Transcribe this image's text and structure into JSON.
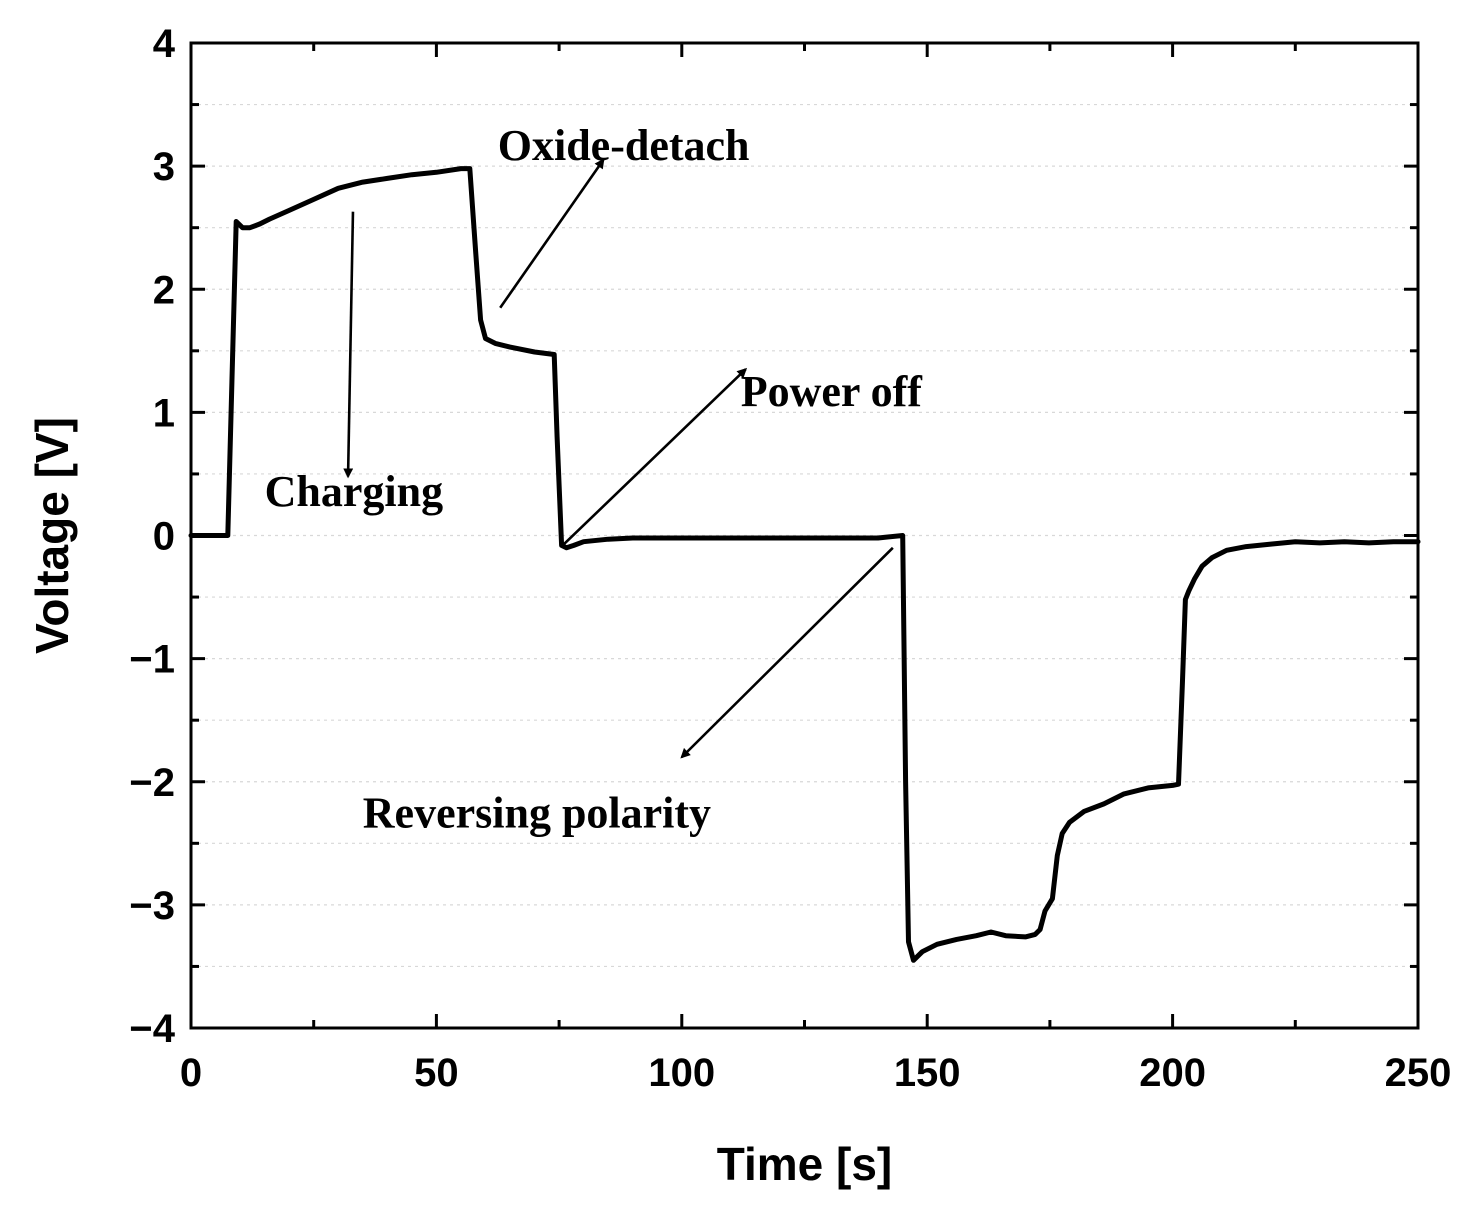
{
  "chart_data": {
    "type": "line",
    "title": "",
    "xlabel": "Time [s]",
    "ylabel": "Voltage [V]",
    "xlim": [
      0,
      250
    ],
    "ylim": [
      -4,
      4
    ],
    "grid": true,
    "x_major_ticks": [
      0,
      50,
      100,
      150,
      200,
      250
    ],
    "x_tick_labels": [
      "0",
      "50",
      "100",
      "150",
      "200",
      "250"
    ],
    "y_major_ticks": [
      4,
      3,
      2,
      1,
      0,
      -1,
      -2,
      -3,
      -4
    ],
    "y_tick_labels": [
      "4",
      "3",
      "2",
      "1",
      "0",
      "−1",
      "−2",
      "−3",
      "−4"
    ],
    "series": [
      {
        "name": "Voltage",
        "color": "#000000",
        "x": [
          0,
          7.5,
          9.2,
          10.5,
          12,
          14,
          16,
          20,
          25,
          30,
          35,
          40,
          45,
          50,
          55,
          56.8,
          58,
          59,
          60,
          62,
          65,
          70,
          74,
          74.6,
          75.5,
          76.5,
          78,
          80,
          85,
          90,
          100,
          120,
          140,
          145,
          145.6,
          146.2,
          147.2,
          149,
          152,
          156,
          160,
          163,
          166,
          170,
          172,
          173,
          174,
          175.5,
          176.5,
          177.5,
          179,
          182,
          186,
          190,
          195,
          200,
          201.2,
          202,
          202.6,
          203.3,
          204.5,
          206,
          208,
          211,
          215,
          220,
          225,
          230,
          235,
          240,
          245,
          250
        ],
        "y": [
          0,
          0,
          2.55,
          2.5,
          2.5,
          2.53,
          2.57,
          2.64,
          2.73,
          2.82,
          2.87,
          2.9,
          2.93,
          2.95,
          2.98,
          2.98,
          2.3,
          1.75,
          1.6,
          1.56,
          1.53,
          1.49,
          1.47,
          0.8,
          -0.08,
          -0.1,
          -0.08,
          -0.05,
          -0.03,
          -0.02,
          -0.02,
          -0.02,
          -0.02,
          0,
          -2.0,
          -3.3,
          -3.45,
          -3.38,
          -3.32,
          -3.28,
          -3.25,
          -3.22,
          -3.25,
          -3.26,
          -3.24,
          -3.2,
          -3.05,
          -2.95,
          -2.6,
          -2.42,
          -2.33,
          -2.24,
          -2.18,
          -2.1,
          -2.05,
          -2.03,
          -2.02,
          -1.2,
          -0.52,
          -0.45,
          -0.35,
          -0.25,
          -0.18,
          -0.12,
          -0.09,
          -0.07,
          -0.05,
          -0.06,
          -0.05,
          -0.06,
          -0.05,
          -0.05
        ]
      }
    ],
    "annotations": [
      {
        "text": "Oxide-detach",
        "x": 62.5,
        "y": 3.05,
        "arrow_from": [
          63,
          1.85
        ],
        "arrow_to": [
          84,
          3.05
        ]
      },
      {
        "text": "Power off",
        "x": 112,
        "y": 1.05,
        "arrow_from": [
          76,
          -0.07
        ],
        "arrow_to": [
          113,
          1.35
        ]
      },
      {
        "text": "Charging",
        "x": 15,
        "y": 0.24,
        "arrow_from": [
          33,
          2.63
        ],
        "arrow_to": [
          32,
          0.48
        ]
      },
      {
        "text": "Reversing polarity",
        "x": 35,
        "y": -2.37,
        "arrow_from": [
          143,
          -0.1
        ],
        "arrow_to": [
          100,
          -1.8
        ]
      }
    ]
  }
}
